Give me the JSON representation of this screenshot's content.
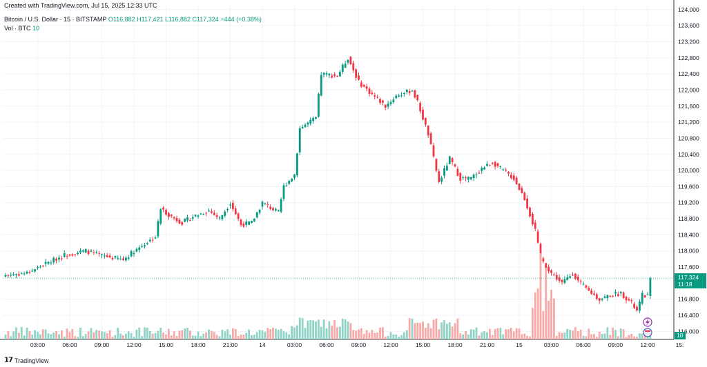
{
  "caption": "Created with TradingView.com, Jul 15, 2025 12:33 UTC",
  "legend": {
    "symbol": "Bitcoin / U.S. Dollar · 15 · BITSTAMP",
    "open": "O116,882",
    "high": "H117,421",
    "low": "L116,882",
    "close": "C117,324",
    "change": "+444 (+0.38%)",
    "vol_label": "Vol · BTC",
    "vol_value": "10"
  },
  "brand": "TradingView",
  "price_tag": {
    "price": "117,324",
    "countdown": "11:18"
  },
  "volume_tag": "10",
  "colors": {
    "up": "#089981",
    "down": "#f23645",
    "up_vol": "#8fd4c6",
    "down_vol": "#f7a9a7",
    "grid": "#f0f3fa"
  },
  "chart_data": {
    "type": "candlestick",
    "title": "Bitcoin / U.S. Dollar · 15 · BITSTAMP",
    "ylim": [
      115800,
      124100
    ],
    "y_ticks": [
      "124,000",
      "123,600",
      "123,200",
      "122,800",
      "122,400",
      "122,000",
      "121,600",
      "121,200",
      "120,800",
      "120,400",
      "120,000",
      "119,600",
      "119,200",
      "118,800",
      "118,400",
      "118,000",
      "117,600",
      "116,800",
      "116,400",
      "116,000"
    ],
    "y_tick_values": [
      124000,
      123600,
      123200,
      122800,
      122400,
      122000,
      121600,
      121200,
      120800,
      120400,
      120000,
      119600,
      119200,
      118800,
      118400,
      118000,
      117600,
      116800,
      116400,
      116000
    ],
    "x_ticks": [
      "03:00",
      "06:00",
      "09:00",
      "12:00",
      "15:00",
      "18:00",
      "21:00",
      "14",
      "03:00",
      "06:00",
      "09:00",
      "12:00",
      "15:00",
      "18:00",
      "21:00",
      "15",
      "03:00",
      "06:00",
      "09:00",
      "12:00",
      "15:"
    ],
    "x_tick_index": [
      12,
      24,
      36,
      48,
      60,
      72,
      84,
      96,
      108,
      120,
      132,
      144,
      156,
      168,
      180,
      192,
      204,
      216,
      228,
      240,
      252
    ],
    "last_price": 117324,
    "price_path": [
      [
        0,
        117400
      ],
      [
        8,
        117450
      ],
      [
        14,
        117650
      ],
      [
        22,
        117900
      ],
      [
        30,
        118000
      ],
      [
        36,
        117880
      ],
      [
        44,
        117780
      ],
      [
        48,
        118000
      ],
      [
        56,
        118350
      ],
      [
        58,
        119050
      ],
      [
        62,
        118850
      ],
      [
        66,
        118700
      ],
      [
        70,
        118850
      ],
      [
        76,
        119000
      ],
      [
        80,
        118800
      ],
      [
        84,
        119200
      ],
      [
        88,
        118650
      ],
      [
        92,
        118700
      ],
      [
        96,
        119200
      ],
      [
        102,
        118950
      ],
      [
        104,
        119600
      ],
      [
        108,
        119900
      ],
      [
        110,
        121050
      ],
      [
        116,
        121300
      ],
      [
        118,
        122400
      ],
      [
        124,
        122350
      ],
      [
        128,
        122800
      ],
      [
        132,
        122200
      ],
      [
        136,
        121950
      ],
      [
        142,
        121600
      ],
      [
        146,
        121850
      ],
      [
        152,
        122000
      ],
      [
        154,
        121700
      ],
      [
        158,
        120900
      ],
      [
        162,
        119700
      ],
      [
        166,
        120300
      ],
      [
        170,
        119800
      ],
      [
        174,
        119800
      ],
      [
        178,
        120050
      ],
      [
        182,
        120200
      ],
      [
        186,
        120000
      ],
      [
        190,
        119800
      ],
      [
        194,
        119300
      ],
      [
        198,
        118500
      ],
      [
        200,
        117800
      ],
      [
        204,
        117450
      ],
      [
        208,
        117200
      ],
      [
        212,
        117450
      ],
      [
        214,
        117250
      ],
      [
        218,
        117000
      ],
      [
        222,
        116800
      ],
      [
        226,
        116900
      ],
      [
        230,
        116950
      ],
      [
        234,
        116700
      ],
      [
        236,
        116500
      ],
      [
        238,
        116900
      ],
      [
        240,
        116880
      ],
      [
        241,
        117324
      ]
    ]
  }
}
